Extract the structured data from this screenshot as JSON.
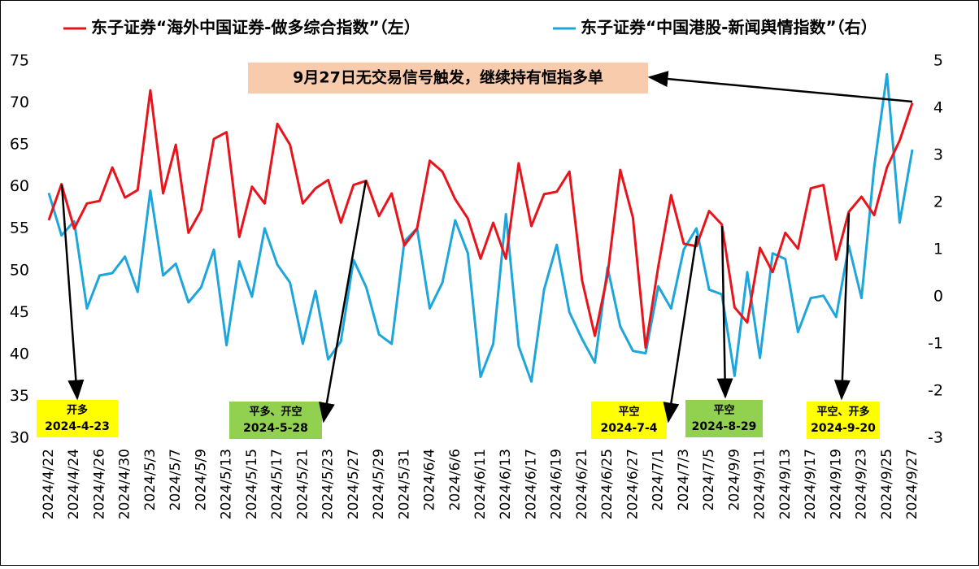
{
  "chart_data": {
    "type": "line",
    "legend_position": "top",
    "categories": [
      "2024/4/22",
      null,
      "2024/4/24",
      null,
      "2024/4/26",
      null,
      "2024/4/30",
      null,
      "2024/5/3",
      null,
      "2024/5/7",
      null,
      "2024/5/9",
      null,
      "2024/5/13",
      null,
      "2024/5/15",
      null,
      "2024/5/17",
      null,
      "2024/5/21",
      null,
      "2024/5/23",
      null,
      "2024/5/27",
      null,
      "2024/5/29",
      null,
      "2024/5/31",
      null,
      "2024/6/4",
      null,
      "2024/6/6",
      null,
      "2024/6/11",
      null,
      "2024/6/13",
      null,
      "2024/6/17",
      null,
      "2024/6/19",
      null,
      "2024/6/21",
      null,
      "2024/6/25",
      null,
      "2024/6/27",
      null,
      "2024/7/1",
      null,
      "2024/7/3",
      null,
      "2024/7/5",
      null,
      "2024/9/9",
      null,
      "2024/9/11",
      null,
      "2024/9/13",
      null,
      "2024/9/17",
      null,
      "2024/9/19",
      null,
      "2024/9/23",
      null,
      "2024/9/25",
      null,
      "2024/9/27"
    ],
    "series": [
      {
        "name": "东子证券“海外中国证券-做多综合指数”（左）",
        "color": "#e8141c",
        "axis": "y",
        "values": [
          56,
          60.3,
          55,
          58,
          58.3,
          62.3,
          58.7,
          59.6,
          71.5,
          59.2,
          65,
          54.5,
          57.2,
          65.7,
          66.5,
          54,
          60,
          58,
          67.5,
          65,
          58,
          59.8,
          60.8,
          55.7,
          60.2,
          60.7,
          56.5,
          59.2,
          53,
          55,
          63.1,
          61.8,
          58.5,
          56.2,
          51.4,
          55.7,
          51.4,
          62.8,
          55.3,
          59.1,
          59.4,
          61.8,
          48.8,
          42.2,
          49.5,
          62,
          56.3,
          40.8,
          50.5,
          59,
          53.2,
          52.9,
          57.1,
          55.5,
          45.6,
          43.8,
          52.7,
          49.8,
          54.5,
          52.6,
          59.8,
          60.2,
          51.3,
          57,
          58.8,
          56.6,
          62.3,
          65.5,
          70
        ]
      },
      {
        "name": "东子证券“中国港股-新闻舆情指数”（右）",
        "color": "#1ea6dc",
        "axis": "y2",
        "values": [
          2.2,
          1.3,
          1.6,
          -0.25,
          0.45,
          0.5,
          0.85,
          0.1,
          2.25,
          0.45,
          0.7,
          -0.12,
          0.2,
          1.0,
          -1.03,
          0.75,
          0,
          1.45,
          0.68,
          0.3,
          -1.0,
          0.12,
          -1.33,
          -0.95,
          0.78,
          0.2,
          -0.8,
          -1.0,
          1.17,
          1.45,
          -0.25,
          0.3,
          1.62,
          0.92,
          -1.7,
          -1.0,
          1.75,
          -1.05,
          -1.8,
          0.15,
          1.1,
          -0.33,
          -0.9,
          -1.4,
          0.62,
          -0.63,
          -1.15,
          -1.2,
          0.22,
          -0.25,
          1.0,
          1.45,
          0.15,
          0.05,
          -1.68,
          0.52,
          -1.3,
          0.92,
          0.8,
          -0.75,
          -0.03,
          0.02,
          -0.43,
          1.08,
          -0.03,
          2.75,
          4.72,
          1.57,
          3.12
        ]
      }
    ],
    "ylim": [
      30,
      75
    ],
    "yticks": [
      30,
      35,
      40,
      45,
      50,
      55,
      60,
      65,
      70,
      75
    ],
    "y2lim": [
      -3,
      5
    ],
    "y2ticks": [
      -3,
      -2,
      -1,
      0,
      1,
      2,
      3,
      4,
      5
    ],
    "annotations": [
      {
        "text": "9月27日无交易信号触发，继续持有恒指多单"
      },
      {
        "action": "开多",
        "date": "2024-4-23"
      },
      {
        "action": "平多、开空",
        "date": "2024-5-28"
      },
      {
        "action": "平空",
        "date": "2024-7-4"
      },
      {
        "action": "平空",
        "date": "2024-8-29"
      },
      {
        "action": "平空、开多",
        "date": "2024-9-20"
      }
    ]
  }
}
